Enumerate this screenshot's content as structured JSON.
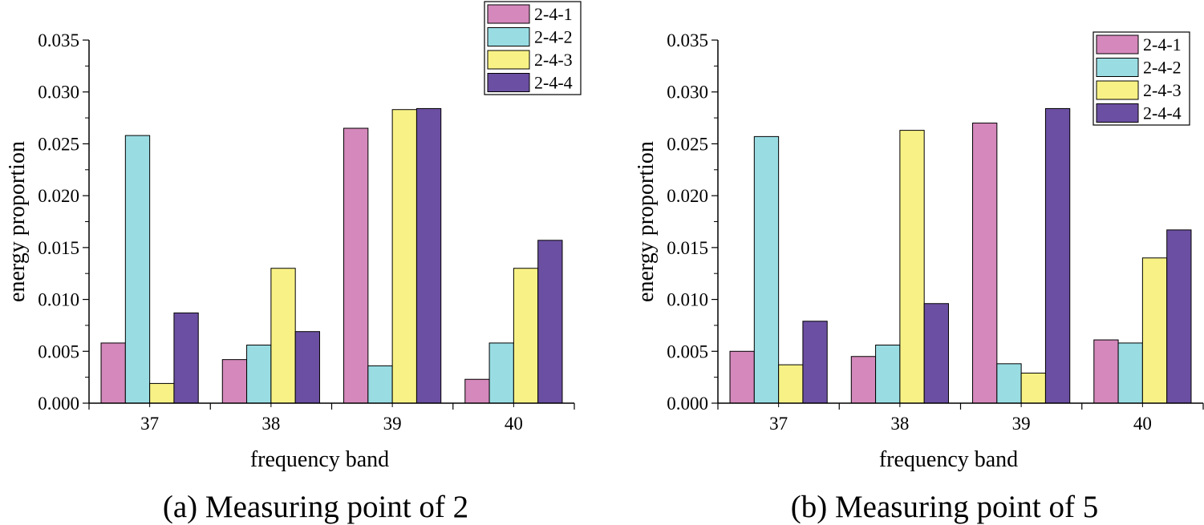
{
  "colors": {
    "2-4-1": "#d488bb",
    "2-4-2": "#99dde3",
    "2-4-3": "#f8f286",
    "2-4-4": "#6b4fa2"
  },
  "chart_data": [
    {
      "type": "bar",
      "caption": "(a) Measuring point of 2",
      "xlabel": "frequency band",
      "ylabel": "energy proportion",
      "categories": [
        "37",
        "38",
        "39",
        "40"
      ],
      "ylim": [
        0,
        0.035
      ],
      "yticks": [
        "0.000",
        "0.005",
        "0.010",
        "0.015",
        "0.020",
        "0.025",
        "0.030",
        "0.035"
      ],
      "legend_position": "top-right (above plot)",
      "series": [
        {
          "name": "2-4-1",
          "values": [
            0.0058,
            0.0042,
            0.0265,
            0.0023
          ]
        },
        {
          "name": "2-4-2",
          "values": [
            0.0258,
            0.0056,
            0.0036,
            0.0058
          ]
        },
        {
          "name": "2-4-3",
          "values": [
            0.0019,
            0.013,
            0.0283,
            0.013
          ]
        },
        {
          "name": "2-4-4",
          "values": [
            0.0087,
            0.0069,
            0.0284,
            0.0157
          ]
        }
      ]
    },
    {
      "type": "bar",
      "caption": "(b) Measuring point of 5",
      "xlabel": "frequency band",
      "ylabel": "energy proportion",
      "categories": [
        "37",
        "38",
        "39",
        "40"
      ],
      "ylim": [
        0,
        0.035
      ],
      "yticks": [
        "0.000",
        "0.005",
        "0.010",
        "0.015",
        "0.020",
        "0.025",
        "0.030",
        "0.035"
      ],
      "legend_position": "top-right",
      "series": [
        {
          "name": "2-4-1",
          "values": [
            0.005,
            0.0045,
            0.027,
            0.0061
          ]
        },
        {
          "name": "2-4-2",
          "values": [
            0.0257,
            0.0056,
            0.0038,
            0.0058
          ]
        },
        {
          "name": "2-4-3",
          "values": [
            0.0037,
            0.0263,
            0.0029,
            0.014
          ]
        },
        {
          "name": "2-4-4",
          "values": [
            0.0079,
            0.0096,
            0.0284,
            0.0167
          ]
        }
      ]
    }
  ]
}
